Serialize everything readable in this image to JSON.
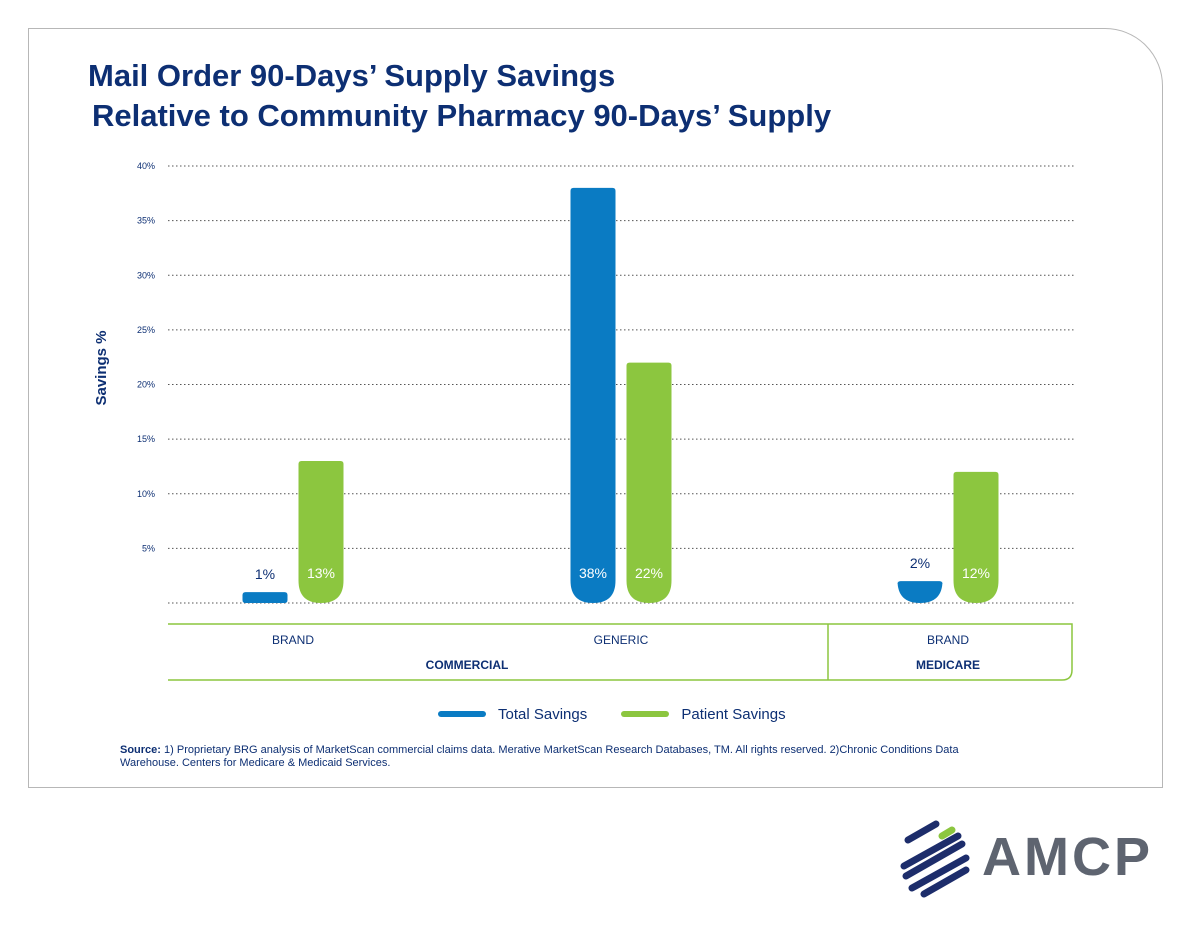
{
  "header": {
    "title_line1": "Mail Order 90-Days’ Supply Savings",
    "title_line2": "Relative to Community Pharmacy 90-Days’ Supply"
  },
  "chart_data": {
    "type": "bar",
    "ylabel": "Savings %",
    "ylim": [
      0,
      40
    ],
    "yticks": [
      "40%",
      "35%",
      "30%",
      "25%",
      "20%",
      "15%",
      "10%",
      "5%"
    ],
    "grid": true,
    "categories": [
      "BRAND",
      "GENERIC",
      "BRAND"
    ],
    "groups": [
      "COMMERCIAL",
      "MEDICARE"
    ],
    "group_members": [
      [
        0,
        1
      ],
      [
        2
      ]
    ],
    "series": [
      {
        "name": "Total Savings",
        "values": [
          1,
          38,
          2
        ],
        "labels": [
          "1%",
          "38%",
          "2%"
        ],
        "color": "#0a7bc3"
      },
      {
        "name": "Patient Savings",
        "values": [
          13,
          22,
          12
        ],
        "labels": [
          "13%",
          "22%",
          "12%"
        ],
        "color": "#8cc63f"
      }
    ],
    "legend_position": "bottom"
  },
  "source": {
    "label": "Source:",
    "text": "1) Proprietary BRG analysis of MarketScan commercial claims data. Merative MarketScan Research Databases, TM. All rights reserved. 2)Chronic Conditions Data Warehouse. Centers for Medicare & Medicaid Services."
  },
  "logo": {
    "text": "AMCP",
    "icon": "amcp-stripes-icon",
    "colors": {
      "navy": "#1d2d6b",
      "green": "#8cc63f",
      "gray": "#5e6470"
    }
  },
  "colors": {
    "title": "#0d2f73",
    "grid": "#555555",
    "axis_box": "#8cc63f"
  }
}
